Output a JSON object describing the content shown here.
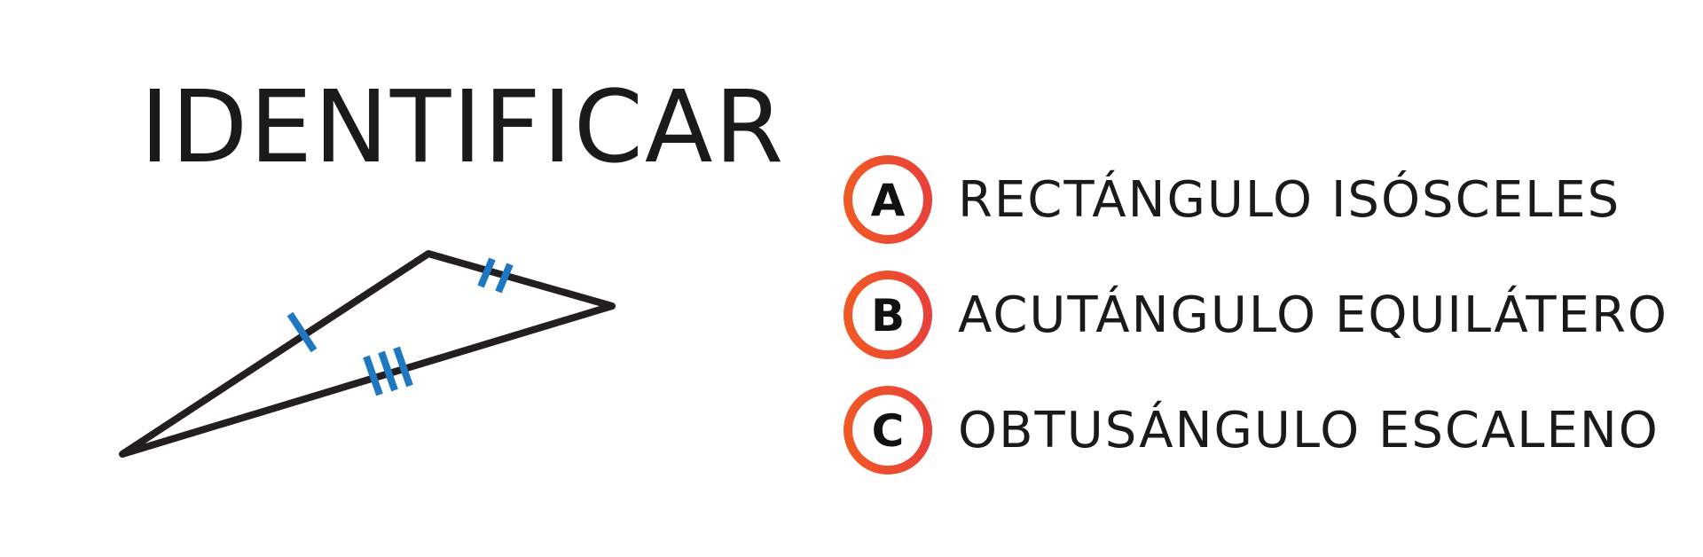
{
  "title": "IDENTIFICAR",
  "colors": {
    "text": "#1a1a1a",
    "tick_marks": "#1f77c2",
    "badge_gradient_start": "#f15a24",
    "badge_gradient_end": "#e8403a"
  },
  "figure": {
    "shape": "triangle",
    "tick_marks": [
      "single",
      "double",
      "triple"
    ]
  },
  "options": [
    {
      "letter": "A",
      "text": "RECTÁNGULO ISÓSCELES"
    },
    {
      "letter": "B",
      "text": "ACUTÁNGULO EQUILÁTERO"
    },
    {
      "letter": "C",
      "text": "OBTUSÁNGULO ESCALENO"
    }
  ]
}
